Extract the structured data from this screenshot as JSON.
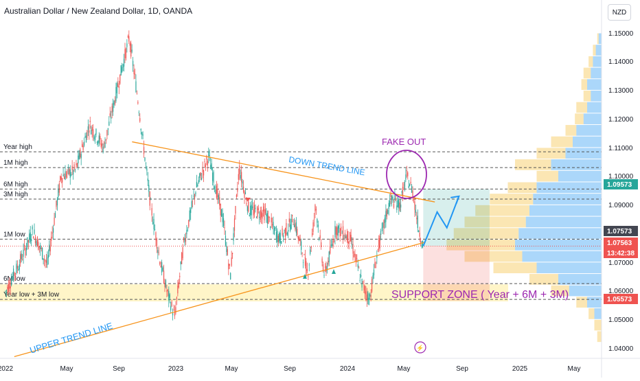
{
  "header": {
    "symbol_title": "Australian Dollar / New Zealand Dollar, 1D, OANDA",
    "currency_button": "NZD"
  },
  "chart_data": {
    "type": "candlestick",
    "title": "Australian Dollar / New Zealand Dollar, 1D, OANDA",
    "x_tick_labels": [
      "2022",
      "May",
      "Sep",
      "2023",
      "May",
      "Sep",
      "2024",
      "May",
      "Sep",
      "2025",
      "May"
    ],
    "y_tick_labels": [
      "1.15000",
      "1.14000",
      "1.13000",
      "1.12000",
      "1.11000",
      "1.10000",
      "1.09000",
      "1.08000",
      "1.07000",
      "1.06000",
      "1.05000",
      "1.04000"
    ],
    "ylim": [
      1.037,
      1.158
    ],
    "ohlc_path": [
      [
        "2022-01-01",
        1.0595
      ],
      [
        "2022-02-01",
        1.07
      ],
      [
        "2022-03-01",
        1.081
      ],
      [
        "2022-04-01",
        1.069
      ],
      [
        "2022-05-01",
        1.1
      ],
      [
        "2022-06-01",
        1.102
      ],
      [
        "2022-07-01",
        1.118
      ],
      [
        "2022-08-01",
        1.11
      ],
      [
        "2022-09-01",
        1.132
      ],
      [
        "2022-09-25",
        1.1485
      ],
      [
        "2022-10-15",
        1.125
      ],
      [
        "2022-11-10",
        1.09
      ],
      [
        "2022-12-01",
        1.07
      ],
      [
        "2022-12-15",
        1.06
      ],
      [
        "2023-01-01",
        1.051
      ],
      [
        "2023-01-20",
        1.076
      ],
      [
        "2023-02-15",
        1.095
      ],
      [
        "2023-03-15",
        1.107
      ],
      [
        "2023-04-15",
        1.085
      ],
      [
        "2023-05-01",
        1.065
      ],
      [
        "2023-05-20",
        1.103
      ],
      [
        "2023-06-10",
        1.088
      ],
      [
        "2023-07-15",
        1.087
      ],
      [
        "2023-08-15",
        1.078
      ],
      [
        "2023-09-15",
        1.085
      ],
      [
        "2023-10-15",
        1.066
      ],
      [
        "2023-11-01",
        1.09
      ],
      [
        "2023-11-20",
        1.065
      ],
      [
        "2023-12-15",
        1.082
      ],
      [
        "2024-01-15",
        1.078
      ],
      [
        "2024-02-10",
        1.062
      ],
      [
        "2024-02-25",
        1.057
      ],
      [
        "2024-03-15",
        1.075
      ],
      [
        "2024-04-10",
        1.092
      ],
      [
        "2024-05-01",
        1.09
      ],
      [
        "2024-05-15",
        1.1
      ],
      [
        "2024-05-28",
        1.095
      ],
      [
        "2024-06-10",
        1.082
      ],
      [
        "2024-06-20",
        1.0756
      ]
    ],
    "levels": [
      {
        "label": "Year high",
        "value": 1.1085,
        "color": "#787b86"
      },
      {
        "label": "1M high",
        "value": 1.103,
        "color": "#787b86"
      },
      {
        "label": "6M high",
        "value": 1.0955,
        "color": "#787b86"
      },
      {
        "label": "3M high",
        "value": 1.092,
        "color": "#787b86"
      },
      {
        "label": "1M low",
        "value": 1.078,
        "color": "#787b86"
      },
      {
        "label": "6M low",
        "value": 1.0625,
        "color": "#787b86"
      },
      {
        "label": "Year low + 3M low",
        "value": 1.057,
        "color": "#787b86"
      }
    ],
    "support_zone": {
      "from": 1.057,
      "to": 1.062,
      "color": "#fff4c2"
    },
    "trend_lines": [
      {
        "label": "DOWN TREND LINE",
        "from": [
          "2022-10-01",
          1.112
        ],
        "to": [
          "2024-07-15",
          1.091
        ],
        "color": "#f7931a"
      },
      {
        "label": "UPPER TREND LINE",
        "from": [
          "2022-01-20",
          1.037
        ],
        "to": [
          "2024-06-25",
          1.077
        ],
        "color": "#f7931a"
      }
    ],
    "annotations": [
      {
        "text": "FAKE OUT",
        "color": "#9c27b0"
      },
      {
        "text": "SUPPORT ZONE ( Year + 6M + 3M)",
        "color": "#9c27b0"
      }
    ],
    "position_box": {
      "from_date": "2024-06-20",
      "to_date": "2024-11-10",
      "entry": 1.0756,
      "target": 1.0955,
      "stop": 1.0565
    },
    "price_labels": [
      {
        "text": "1.09573",
        "bg": "#26a69a",
        "fg": "#ffffff"
      },
      {
        "text": "1.07573",
        "bg": "#434651",
        "fg": "#ffffff"
      },
      {
        "text": "1.07563",
        "bg": "#ef5350",
        "fg": "#ffffff"
      },
      {
        "text": "13:42:38",
        "bg": "#ef5350",
        "fg": "#ffffff"
      },
      {
        "text": "1.05573",
        "bg": "#ef5350",
        "fg": "#ffffff"
      }
    ],
    "volume_profile": [
      {
        "price": 1.044,
        "blue": 0,
        "yellow": 6
      },
      {
        "price": 1.048,
        "blue": 0,
        "yellow": 10
      },
      {
        "price": 1.052,
        "blue": 10,
        "yellow": 8
      },
      {
        "price": 1.056,
        "blue": 20,
        "yellow": 15
      },
      {
        "price": 1.06,
        "blue": 45,
        "yellow": 25
      },
      {
        "price": 1.064,
        "blue": 60,
        "yellow": 40
      },
      {
        "price": 1.068,
        "blue": 90,
        "yellow": 60
      },
      {
        "price": 1.072,
        "blue": 110,
        "yellow": 80
      },
      {
        "price": 1.076,
        "blue": 120,
        "yellow": 95
      },
      {
        "price": 1.08,
        "blue": 115,
        "yellow": 90
      },
      {
        "price": 1.084,
        "blue": 105,
        "yellow": 85
      },
      {
        "price": 1.088,
        "blue": 100,
        "yellow": 75
      },
      {
        "price": 1.092,
        "blue": 95,
        "yellow": 60
      },
      {
        "price": 1.096,
        "blue": 90,
        "yellow": 40
      },
      {
        "price": 1.1,
        "blue": 60,
        "yellow": 30
      },
      {
        "price": 1.104,
        "blue": 70,
        "yellow": 50
      },
      {
        "price": 1.108,
        "blue": 50,
        "yellow": 40
      },
      {
        "price": 1.112,
        "blue": 40,
        "yellow": 30
      },
      {
        "price": 1.116,
        "blue": 35,
        "yellow": 15
      },
      {
        "price": 1.12,
        "blue": 25,
        "yellow": 12
      },
      {
        "price": 1.124,
        "blue": 20,
        "yellow": 15
      },
      {
        "price": 1.128,
        "blue": 15,
        "yellow": 10
      },
      {
        "price": 1.132,
        "blue": 20,
        "yellow": 8
      },
      {
        "price": 1.136,
        "blue": 15,
        "yellow": 10
      },
      {
        "price": 1.14,
        "blue": 12,
        "yellow": 6
      },
      {
        "price": 1.144,
        "blue": 8,
        "yellow": 4
      },
      {
        "price": 1.148,
        "blue": 4,
        "yellow": 2
      }
    ],
    "colors": {
      "up": "#26a69a",
      "down": "#ef5350",
      "profile_blue": "#2196f3",
      "profile_yellow": "#f5c040"
    }
  }
}
